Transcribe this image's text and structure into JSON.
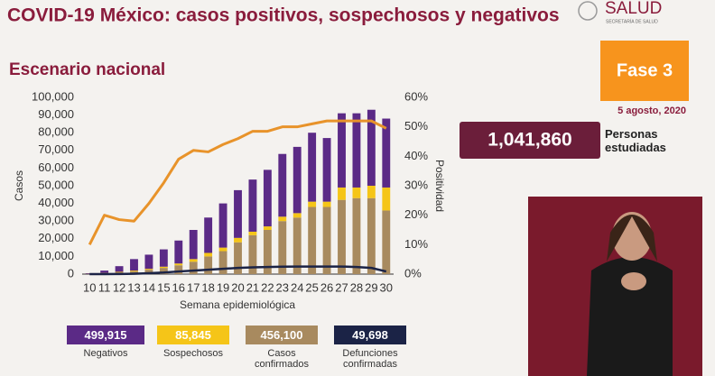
{
  "header": {
    "logo": "SALUD",
    "logo_sub": "SECRETARÍA DE SALUD"
  },
  "phase": "Fase 3",
  "date": "5 agosto, 2020",
  "studied": {
    "value": "1,041,860",
    "label": "Personas estudiadas"
  },
  "chart_data": {
    "type": "bar",
    "title": "COVID-19 México: casos positivos, sospechosos y negativos",
    "subtitle": "Escenario nacional",
    "x_label": "Semana epidemiológica",
    "y_label": "Casos",
    "y2_label": "Positividad",
    "categories": [
      "10",
      "11",
      "12",
      "13",
      "14",
      "15",
      "16",
      "17",
      "18",
      "19",
      "20",
      "21",
      "22",
      "23",
      "24",
      "25",
      "26",
      "27",
      "28",
      "29",
      "30"
    ],
    "series": [
      {
        "name": "Negativos",
        "total": "499,915",
        "type": "bar",
        "color": "#5b2a86",
        "values": [
          300,
          1300,
          3200,
          6500,
          8000,
          9800,
          13000,
          16500,
          20000,
          25000,
          27000,
          29500,
          32000,
          35500,
          37500,
          39000,
          36000,
          42000,
          42000,
          43000,
          39000
        ]
      },
      {
        "name": "Sospechosos",
        "total": "85,845",
        "type": "bar",
        "color": "#f5c518",
        "values": [
          0,
          200,
          300,
          500,
          500,
          700,
          1000,
          1500,
          2000,
          2000,
          2500,
          2000,
          2000,
          2500,
          2500,
          3000,
          3000,
          7000,
          6000,
          7000,
          13000
        ]
      },
      {
        "name": "Casos confirmados",
        "total": "456,100",
        "type": "bar",
        "color": "#a88a5f",
        "values": [
          200,
          500,
          1000,
          1500,
          2500,
          3500,
          5000,
          7000,
          10000,
          13000,
          18000,
          22000,
          25000,
          30000,
          32000,
          38000,
          38000,
          42000,
          43000,
          43000,
          36000
        ]
      },
      {
        "name": "Defunciones confirmadas",
        "total": "49,698",
        "type": "line",
        "color": "#1b2346",
        "values": [
          0,
          0,
          50,
          200,
          500,
          900,
          1500,
          2000,
          2500,
          3000,
          3500,
          3800,
          4000,
          4200,
          4300,
          4300,
          4300,
          4300,
          4000,
          3500,
          1500
        ]
      },
      {
        "type": "line",
        "axis": "y2",
        "color": "#e8932a",
        "values": [
          10,
          20,
          18.5,
          18,
          24,
          31,
          39,
          42,
          41.5,
          44,
          46,
          48.5,
          48.5,
          50,
          50,
          51,
          52,
          52,
          52,
          52,
          49.5
        ]
      }
    ],
    "ylim": [
      0,
      100000
    ],
    "yticks": [
      0,
      {
        "value": 10000,
        "label": "10,000"
      },
      {
        "value": 20000,
        "label": "20,000"
      },
      {
        "value": 30000,
        "label": "30,000"
      },
      {
        "value": 40000,
        "label": "40,000"
      },
      {
        "value": 50000,
        "label": "50,000"
      },
      {
        "value": 60000,
        "label": "60,000"
      },
      {
        "value": 70000,
        "label": "70,000"
      },
      {
        "value": 80000,
        "label": "80,000"
      },
      {
        "value": 90000,
        "label": "90,000"
      },
      {
        "value": 100000,
        "label": "100,000"
      }
    ],
    "y2lim": [
      0,
      60
    ],
    "y2ticks": [
      {
        "value": 0,
        "label": "0%"
      },
      {
        "value": 10,
        "label": "10%"
      },
      {
        "value": 20,
        "label": "20%"
      },
      {
        "value": 30,
        "label": "30%"
      },
      {
        "value": 40,
        "label": "40%"
      },
      {
        "value": 50,
        "label": "50%"
      },
      {
        "value": 60,
        "label": "60%"
      }
    ],
    "grid": false
  }
}
